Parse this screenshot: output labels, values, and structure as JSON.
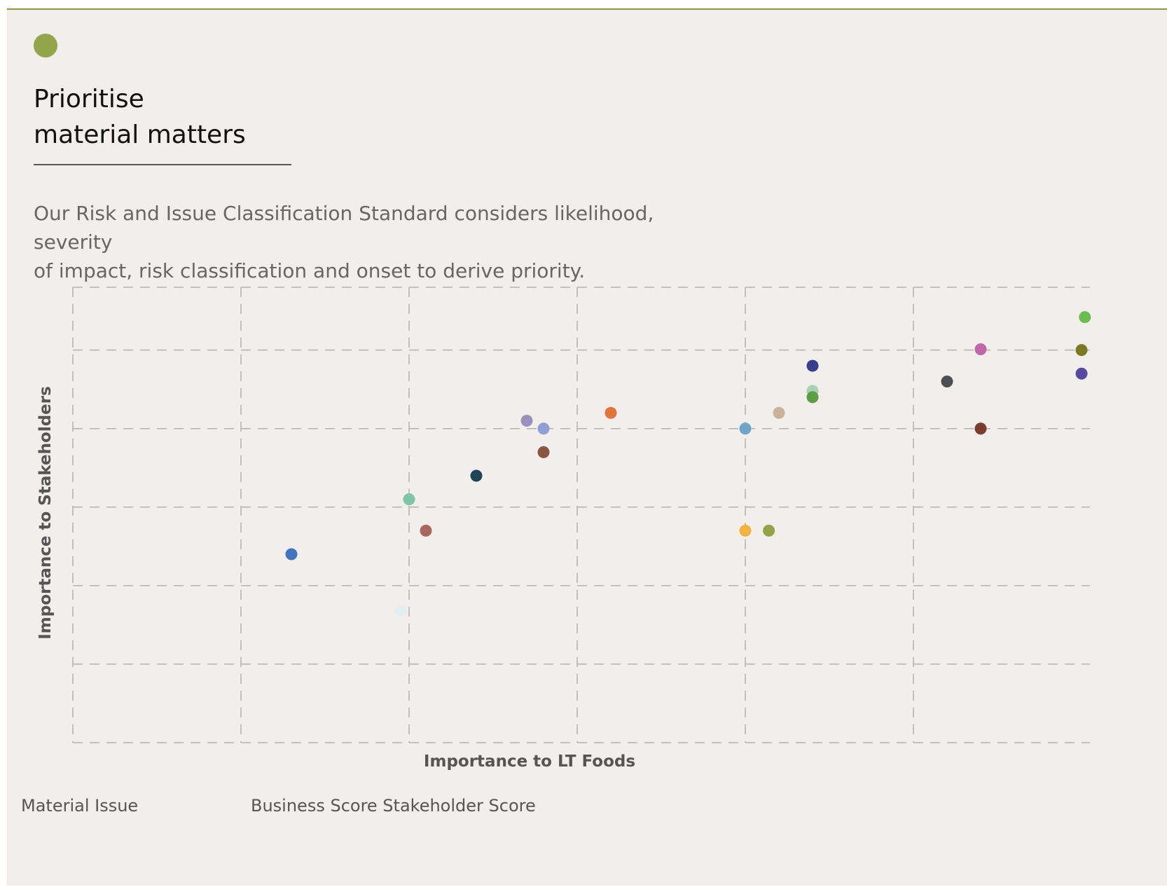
{
  "title_lines": [
    "Prioritise",
    "material matters"
  ],
  "description_lines": [
    "Our Risk and Issue Classification Standard considers likelihood, severity",
    "of impact, risk classification and onset to derive priority."
  ],
  "colors": {
    "accent": "#93a44a",
    "panel_bg": "#f2eeeb",
    "grid": "#b5b0ad"
  },
  "legend": {
    "marker_icon": "circle-icon"
  },
  "table_header": {
    "material_issue": "Material Issue",
    "scores": "Business Score Stakeholder Score"
  },
  "chart_data": {
    "type": "scatter",
    "xlabel": "Importance to LT Foods",
    "ylabel": "Importance to Stakeholders",
    "xlim": [
      0,
      6
    ],
    "ylim": [
      0,
      5.8
    ],
    "grid": true,
    "points": [
      {
        "x": 6.02,
        "y": 5.42,
        "color": "#6cbd4f"
      },
      {
        "x": 5.4,
        "y": 5.01,
        "color": "#c266a8"
      },
      {
        "x": 6.0,
        "y": 5.0,
        "color": "#7b7a23"
      },
      {
        "x": 6.0,
        "y": 4.7,
        "color": "#554aa0"
      },
      {
        "x": 4.4,
        "y": 4.8,
        "color": "#3a3e8f"
      },
      {
        "x": 5.2,
        "y": 4.6,
        "color": "#4d4f52"
      },
      {
        "x": 4.4,
        "y": 4.48,
        "color": "#a6d3b6"
      },
      {
        "x": 4.4,
        "y": 4.4,
        "color": "#5a9e43"
      },
      {
        "x": 3.2,
        "y": 4.2,
        "color": "#e3733a"
      },
      {
        "x": 4.2,
        "y": 4.2,
        "color": "#c9b49a"
      },
      {
        "x": 2.7,
        "y": 4.1,
        "color": "#9c8fbe"
      },
      {
        "x": 2.8,
        "y": 4.0,
        "color": "#8e9fd6"
      },
      {
        "x": 4.0,
        "y": 4.0,
        "color": "#6ea5cb"
      },
      {
        "x": 5.4,
        "y": 4.0,
        "color": "#7a3c2f"
      },
      {
        "x": 2.8,
        "y": 3.7,
        "color": "#8b5640"
      },
      {
        "x": 2.4,
        "y": 3.4,
        "color": "#1f4559"
      },
      {
        "x": 2.0,
        "y": 3.1,
        "color": "#79c7a6"
      },
      {
        "x": 2.1,
        "y": 2.7,
        "color": "#a9675d"
      },
      {
        "x": 4.0,
        "y": 2.7,
        "color": "#f3b43b"
      },
      {
        "x": 4.14,
        "y": 2.7,
        "color": "#93a444"
      },
      {
        "x": 1.3,
        "y": 2.4,
        "color": "#4275bf"
      },
      {
        "x": 1.95,
        "y": 1.68,
        "color": "#e2eef2"
      }
    ]
  }
}
